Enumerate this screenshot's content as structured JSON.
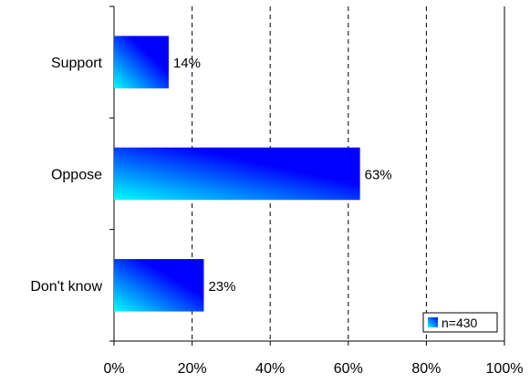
{
  "chart_data": {
    "type": "bar",
    "orientation": "horizontal",
    "categories": [
      "Support",
      "Oppose",
      "Don't know"
    ],
    "values": [
      14,
      63,
      23
    ],
    "value_labels": [
      "14%",
      "63%",
      "23%"
    ],
    "xlim": [
      0,
      100
    ],
    "xticks": [
      0,
      20,
      40,
      60,
      80,
      100
    ],
    "tick_labels": [
      "0%",
      "20%",
      "40%",
      "60%",
      "80%",
      "100%"
    ],
    "grid": "vertical dashed",
    "legend": {
      "entries": [
        "n=430"
      ],
      "placement": "bottom-right"
    },
    "bar_gradient": [
      "#00ffff",
      "#0000ff"
    ],
    "title": "",
    "xlabel": "",
    "ylabel": ""
  }
}
